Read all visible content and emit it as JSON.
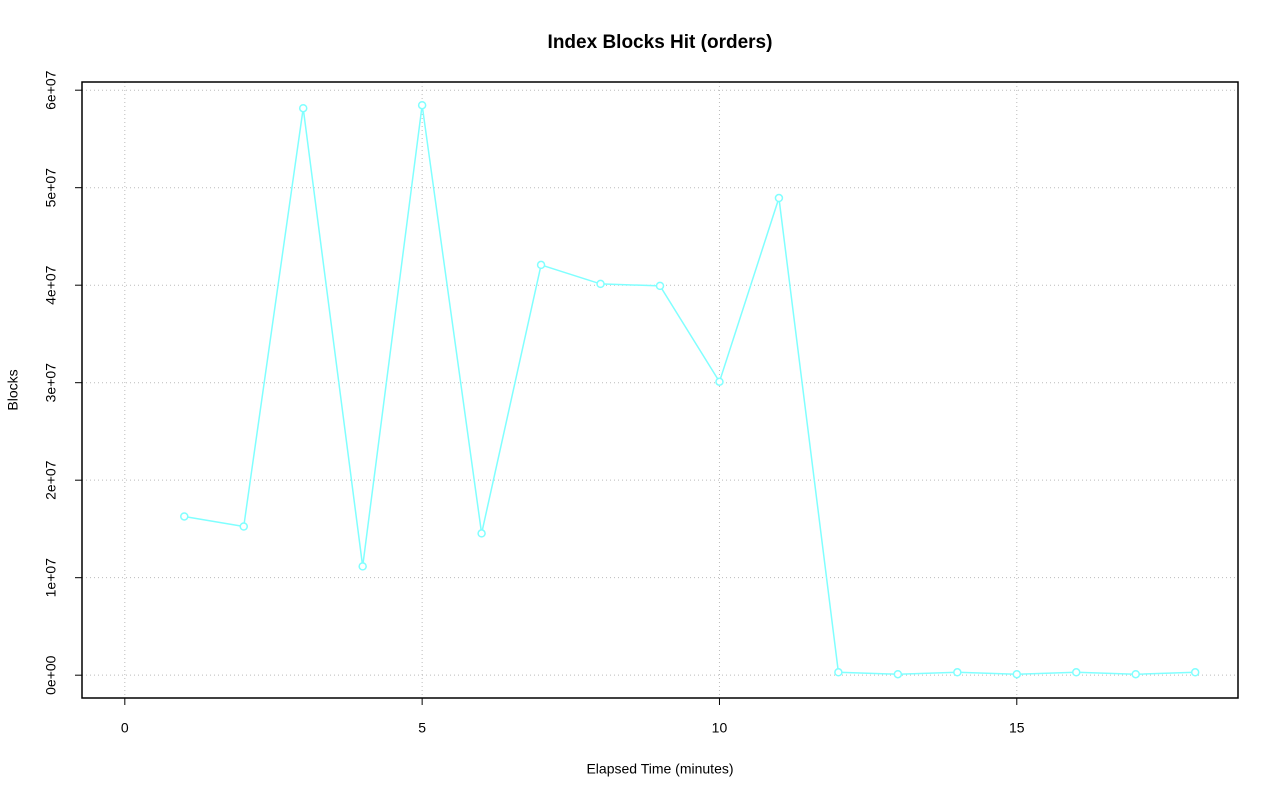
{
  "chart_data": {
    "type": "line",
    "title": "Index Blocks Hit (orders)",
    "x_label": "Elapsed Time (minutes)",
    "y_label": "Blocks",
    "x": [
      1,
      2,
      3,
      4,
      5,
      6,
      7,
      8,
      9,
      10,
      11,
      12,
      13,
      14,
      15,
      16,
      17,
      18
    ],
    "values": [
      16280000,
      15250000,
      58150000,
      11160000,
      58460000,
      14540000,
      42080000,
      40130000,
      39930000,
      30100000,
      48940000,
      300000,
      100000,
      300000,
      100000,
      300000,
      100000,
      300000
    ],
    "color": "#80ffff",
    "xlim": [
      -0.72,
      18.72
    ],
    "xticks": [
      0,
      5,
      10,
      15
    ],
    "ylim": [
      -2340000,
      60840000
    ],
    "yticks": [
      {
        "value": 0,
        "label": "0e+00"
      },
      {
        "value": 10000000,
        "label": "1e+07"
      },
      {
        "value": 20000000,
        "label": "2e+07"
      },
      {
        "value": 30000000,
        "label": "3e+07"
      },
      {
        "value": 40000000,
        "label": "4e+07"
      },
      {
        "value": 50000000,
        "label": "5e+07"
      },
      {
        "value": 60000000,
        "label": "6e+07"
      }
    ],
    "grid": true
  }
}
